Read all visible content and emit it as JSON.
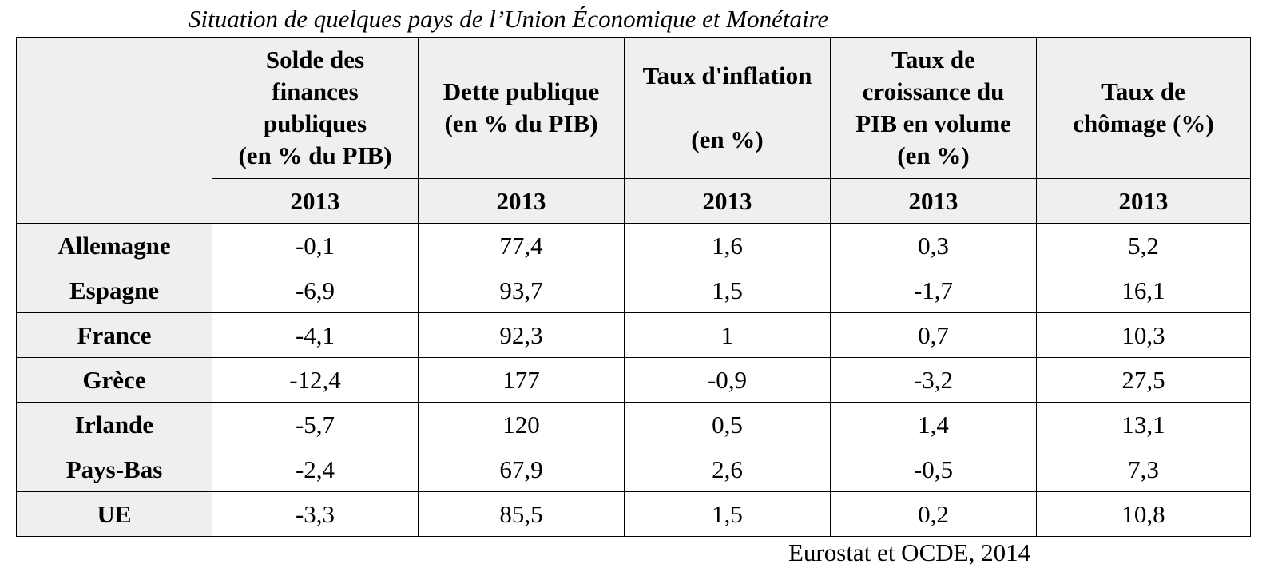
{
  "title": "Situation de quelques pays de l’Union Économique et Monétaire",
  "table": {
    "columns": [
      {
        "lines": [
          "Solde des",
          "finances",
          "publiques",
          "(en % du PIB)"
        ],
        "year": "2013"
      },
      {
        "lines": [
          "Dette publique",
          "(en % du PIB)"
        ],
        "year": "2013"
      },
      {
        "lines": [
          "Taux d'inflation",
          "",
          "(en %)"
        ],
        "year": "2013"
      },
      {
        "lines": [
          "Taux de",
          "croissance du",
          "PIB en volume",
          "(en %)"
        ],
        "year": "2013"
      },
      {
        "lines": [
          "Taux de",
          "chômage (%)"
        ],
        "year": "2013"
      }
    ],
    "rows": [
      {
        "country": "Allemagne",
        "values": [
          "-0,1",
          "77,4",
          "1,6",
          "0,3",
          "5,2"
        ]
      },
      {
        "country": "Espagne",
        "values": [
          "-6,9",
          "93,7",
          "1,5",
          "-1,7",
          "16,1"
        ]
      },
      {
        "country": "France",
        "values": [
          "-4,1",
          "92,3",
          "1",
          "0,7",
          "10,3"
        ]
      },
      {
        "country": "Grèce",
        "values": [
          "-12,4",
          "177",
          "-0,9",
          "-3,2",
          "27,5"
        ]
      },
      {
        "country": "Irlande",
        "values": [
          "-5,7",
          "120",
          "0,5",
          "1,4",
          "13,1"
        ]
      },
      {
        "country": "Pays-Bas",
        "values": [
          "-2,4",
          "67,9",
          "2,6",
          "-0,5",
          "7,3"
        ]
      },
      {
        "country": "UE",
        "values": [
          "-3,3",
          "85,5",
          "1,5",
          "0,2",
          "10,8"
        ]
      }
    ]
  },
  "source": "Eurostat et OCDE, 2014"
}
